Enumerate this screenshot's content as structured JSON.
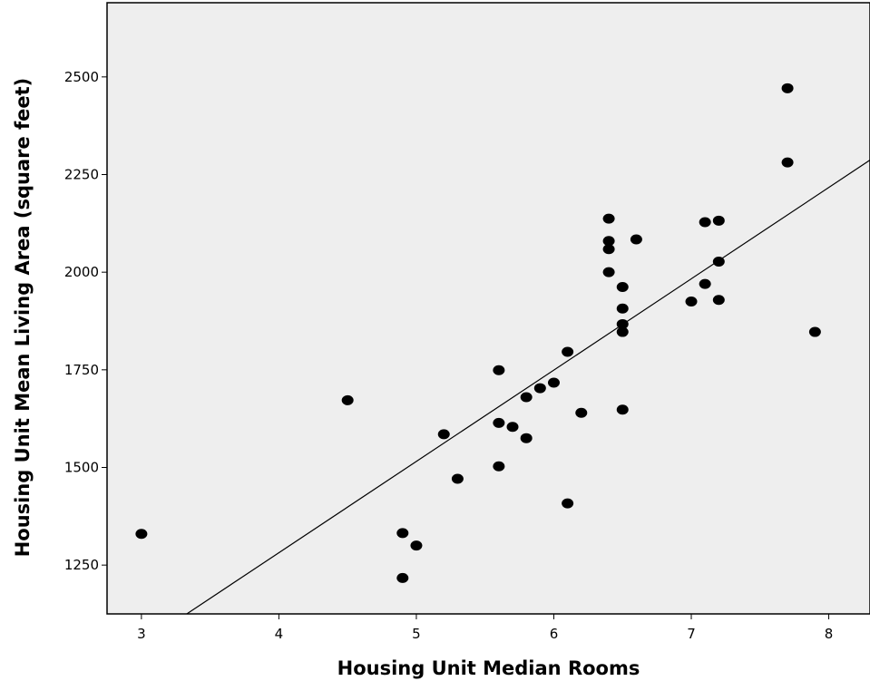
{
  "chart_data": {
    "type": "scatter",
    "xlabel": "Housing Unit Median Rooms",
    "ylabel": "Housing Unit Mean Living Area (square feet)",
    "xlim": [
      2.75,
      8.3
    ],
    "ylim": [
      1125,
      2690
    ],
    "x_ticks": [
      3,
      4,
      5,
      6,
      7,
      8
    ],
    "y_ticks": [
      1250,
      1500,
      1750,
      2000,
      2250,
      2500
    ],
    "grid": false,
    "points": [
      {
        "x": 3.0,
        "y": 1330
      },
      {
        "x": 4.5,
        "y": 1672
      },
      {
        "x": 4.9,
        "y": 1332
      },
      {
        "x": 4.9,
        "y": 1217
      },
      {
        "x": 5.0,
        "y": 1300
      },
      {
        "x": 5.2,
        "y": 1585
      },
      {
        "x": 5.3,
        "y": 1471
      },
      {
        "x": 5.6,
        "y": 1749
      },
      {
        "x": 5.6,
        "y": 1614
      },
      {
        "x": 5.6,
        "y": 1503
      },
      {
        "x": 5.7,
        "y": 1604
      },
      {
        "x": 5.8,
        "y": 1680
      },
      {
        "x": 5.8,
        "y": 1575
      },
      {
        "x": 5.9,
        "y": 1703
      },
      {
        "x": 6.0,
        "y": 1717
      },
      {
        "x": 6.1,
        "y": 1796
      },
      {
        "x": 6.1,
        "y": 1408
      },
      {
        "x": 6.2,
        "y": 1640
      },
      {
        "x": 6.4,
        "y": 2137
      },
      {
        "x": 6.4,
        "y": 2080
      },
      {
        "x": 6.4,
        "y": 2059
      },
      {
        "x": 6.4,
        "y": 2000
      },
      {
        "x": 6.5,
        "y": 1962
      },
      {
        "x": 6.5,
        "y": 1907
      },
      {
        "x": 6.5,
        "y": 1867
      },
      {
        "x": 6.5,
        "y": 1847
      },
      {
        "x": 6.5,
        "y": 1648
      },
      {
        "x": 6.6,
        "y": 2084
      },
      {
        "x": 7.0,
        "y": 1925
      },
      {
        "x": 7.1,
        "y": 2128
      },
      {
        "x": 7.1,
        "y": 1970
      },
      {
        "x": 7.2,
        "y": 2132
      },
      {
        "x": 7.2,
        "y": 2027
      },
      {
        "x": 7.2,
        "y": 1929
      },
      {
        "x": 7.7,
        "y": 2471
      },
      {
        "x": 7.7,
        "y": 2281
      },
      {
        "x": 7.9,
        "y": 1847
      }
    ],
    "fit_line": {
      "x": [
        3.33,
        8.3
      ],
      "y": [
        1125,
        2287
      ]
    },
    "colors": {
      "plot_background": "#eeeeee",
      "points": "#000000",
      "line": "#000000",
      "frame": "#000000"
    }
  }
}
